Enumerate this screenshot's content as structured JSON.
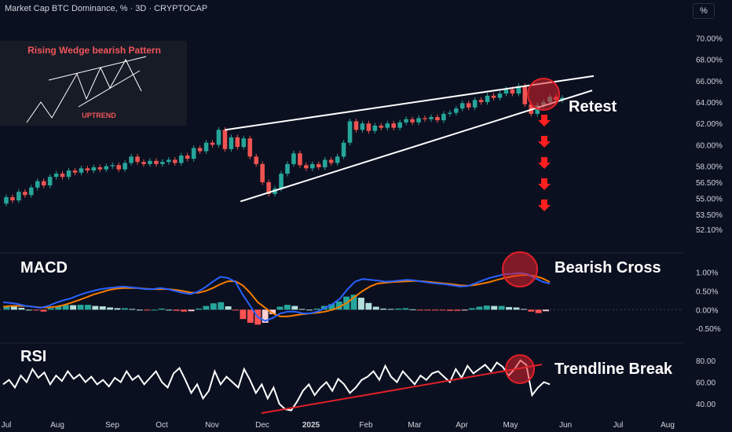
{
  "header": {
    "title": "Market Cap BTC Dominance, % · 3D · CRYPTOCAP",
    "unit": "%"
  },
  "inset": {
    "title": "Rising Wedge bearish Pattern",
    "subtitle": "UPTREND"
  },
  "annotations": {
    "retest": "Retest",
    "macd": "MACD",
    "bearish_cross": "Bearish Cross",
    "rsi": "RSI",
    "trendline_break": "Trendline Break"
  },
  "colors": {
    "background": "#0b1020",
    "up": "#26a69a",
    "down": "#ef5350",
    "macd": "#2962ff",
    "signal": "#f57c00",
    "highlight": "#e0202a"
  },
  "chart_data": [
    {
      "type": "candlestick",
      "title": "Market Cap BTC Dominance, % · 3D · CRYPTOCAP",
      "x_ticks": [
        "Jul",
        "Aug",
        "Sep",
        "Oct",
        "Nov",
        "Dec",
        "2025",
        "Feb",
        "Mar",
        "Apr",
        "May",
        "Jun",
        "Jul",
        "Aug"
      ],
      "y_ticks": [
        "52.10%",
        "53.50%",
        "55.00%",
        "56.50%",
        "58.00%",
        "60.00%",
        "62.00%",
        "64.00%",
        "66.00%",
        "68.00%",
        "70.00%"
      ],
      "ylim": [
        51.5,
        71.5
      ],
      "candles": [
        [
          54.5,
          55.1
        ],
        [
          55.1,
          54.8
        ],
        [
          54.8,
          55.6
        ],
        [
          55.6,
          55.3
        ],
        [
          55.3,
          56.0
        ],
        [
          56.0,
          56.6
        ],
        [
          56.6,
          56.2
        ],
        [
          56.2,
          57.0
        ],
        [
          57.0,
          57.3
        ],
        [
          57.3,
          57.0
        ],
        [
          57.0,
          57.6
        ],
        [
          57.6,
          57.4
        ],
        [
          57.4,
          57.8
        ],
        [
          57.8,
          57.6
        ],
        [
          57.6,
          57.9
        ],
        [
          57.9,
          57.7
        ],
        [
          57.7,
          58.0
        ],
        [
          58.0,
          58.1
        ],
        [
          58.1,
          57.7
        ],
        [
          57.7,
          58.3
        ],
        [
          58.3,
          58.9
        ],
        [
          58.9,
          58.4
        ],
        [
          58.4,
          58.2
        ],
        [
          58.2,
          58.5
        ],
        [
          58.5,
          58.2
        ],
        [
          58.2,
          58.4
        ],
        [
          58.4,
          58.6
        ],
        [
          58.6,
          58.3
        ],
        [
          58.3,
          59.0
        ],
        [
          59.0,
          58.7
        ],
        [
          58.7,
          59.7
        ],
        [
          59.7,
          59.4
        ],
        [
          59.4,
          60.2
        ],
        [
          60.2,
          60.0
        ],
        [
          60.0,
          61.4
        ],
        [
          61.4,
          59.6
        ],
        [
          59.6,
          60.7
        ],
        [
          60.7,
          59.8
        ],
        [
          59.8,
          60.6
        ],
        [
          60.6,
          58.9
        ],
        [
          58.9,
          58.2
        ],
        [
          58.2,
          56.5
        ],
        [
          56.5,
          55.4
        ],
        [
          55.4,
          55.9
        ],
        [
          55.9,
          57.3
        ],
        [
          57.3,
          58.2
        ],
        [
          58.2,
          59.2
        ],
        [
          59.2,
          58.1
        ],
        [
          58.1,
          57.8
        ],
        [
          57.8,
          58.2
        ],
        [
          58.2,
          57.9
        ],
        [
          57.9,
          58.6
        ],
        [
          58.6,
          58.3
        ],
        [
          58.3,
          58.9
        ],
        [
          58.9,
          60.2
        ],
        [
          60.2,
          62.2
        ],
        [
          62.2,
          61.4
        ],
        [
          61.4,
          62.0
        ],
        [
          62.0,
          61.3
        ],
        [
          61.3,
          61.8
        ],
        [
          61.8,
          61.6
        ],
        [
          61.6,
          62.0
        ],
        [
          62.0,
          61.6
        ],
        [
          61.6,
          62.1
        ],
        [
          62.1,
          62.4
        ],
        [
          62.4,
          62.1
        ],
        [
          62.1,
          62.5
        ],
        [
          62.5,
          62.4
        ],
        [
          62.4,
          62.6
        ],
        [
          62.6,
          62.3
        ],
        [
          62.3,
          62.9
        ],
        [
          62.9,
          63.0
        ],
        [
          63.0,
          63.4
        ],
        [
          63.4,
          63.9
        ],
        [
          63.9,
          63.5
        ],
        [
          63.5,
          64.2
        ],
        [
          64.2,
          64.0
        ],
        [
          64.0,
          64.6
        ],
        [
          64.6,
          64.4
        ],
        [
          64.4,
          64.8
        ],
        [
          64.8,
          65.2
        ],
        [
          65.2,
          64.8
        ],
        [
          64.8,
          65.5
        ],
        [
          65.5,
          63.8
        ],
        [
          63.8,
          62.9
        ],
        [
          62.9,
          63.7
        ],
        [
          63.7,
          64.0
        ],
        [
          64.0,
          64.5
        ],
        [
          64.5,
          64.2
        ],
        [
          64.2,
          64.4
        ]
      ],
      "trendlines": {
        "wedge_upper": [
          [
            35,
            61.4
          ],
          [
            89,
            66.0
          ]
        ],
        "wedge_lower": [
          [
            40,
            54.7
          ],
          [
            89,
            64.8
          ]
        ]
      },
      "markers": {
        "retest_circle_index": 86,
        "down_arrows": 5
      }
    },
    {
      "type": "line",
      "title": "MACD",
      "y_ticks": [
        "1.00%",
        "0.50%",
        "0.00%",
        "-0.50%"
      ],
      "ylim": [
        -0.75,
        1.35
      ],
      "series": [
        {
          "name": "MACD",
          "values": [
            0.2,
            0.18,
            0.15,
            0.1,
            0.08,
            0.05,
            0.1,
            0.18,
            0.25,
            0.3,
            0.38,
            0.45,
            0.5,
            0.55,
            0.58,
            0.6,
            0.62,
            0.6,
            0.58,
            0.55,
            0.55,
            0.58,
            0.55,
            0.5,
            0.45,
            0.42,
            0.48,
            0.6,
            0.75,
            0.88,
            0.85,
            0.75,
            0.4,
            0.1,
            -0.2,
            -0.3,
            -0.22,
            -0.1,
            -0.05,
            -0.05,
            -0.1,
            -0.1,
            -0.05,
            0.05,
            0.15,
            0.3,
            0.55,
            0.75,
            0.82,
            0.8,
            0.78,
            0.75,
            0.76,
            0.78,
            0.8,
            0.78,
            0.75,
            0.72,
            0.7,
            0.68,
            0.65,
            0.62,
            0.63,
            0.7,
            0.78,
            0.85,
            0.9,
            0.95,
            0.96,
            0.98,
            0.95,
            0.85,
            0.75,
            0.7
          ]
        },
        {
          "name": "Signal",
          "values": [
            0.08,
            0.1,
            0.1,
            0.1,
            0.08,
            0.06,
            0.06,
            0.08,
            0.12,
            0.18,
            0.25,
            0.32,
            0.4,
            0.46,
            0.52,
            0.56,
            0.58,
            0.58,
            0.58,
            0.56,
            0.55,
            0.55,
            0.55,
            0.53,
            0.5,
            0.46,
            0.45,
            0.5,
            0.58,
            0.68,
            0.76,
            0.76,
            0.65,
            0.45,
            0.2,
            0.05,
            -0.1,
            -0.18,
            -0.18,
            -0.15,
            -0.12,
            -0.1,
            -0.08,
            -0.05,
            0.0,
            0.08,
            0.2,
            0.35,
            0.5,
            0.62,
            0.7,
            0.72,
            0.74,
            0.75,
            0.76,
            0.77,
            0.76,
            0.74,
            0.72,
            0.7,
            0.68,
            0.65,
            0.64,
            0.66,
            0.7,
            0.74,
            0.8,
            0.85,
            0.89,
            0.92,
            0.93,
            0.9,
            0.84,
            0.74
          ]
        }
      ],
      "histogram": [
        0.1,
        0.08,
        0.05,
        0.0,
        -0.02,
        -0.05,
        0.04,
        0.1,
        0.13,
        0.12,
        0.13,
        0.13,
        0.1,
        0.09,
        0.06,
        0.04,
        0.04,
        0.02,
        0.0,
        -0.01,
        0.0,
        0.03,
        0.0,
        -0.03,
        -0.05,
        -0.04,
        0.03,
        0.1,
        0.17,
        0.2,
        0.09,
        -0.01,
        -0.25,
        -0.35,
        -0.4,
        -0.35,
        -0.12,
        0.08,
        0.13,
        0.1,
        0.02,
        0.0,
        0.03,
        0.1,
        0.15,
        0.22,
        0.35,
        0.4,
        0.32,
        0.18,
        0.08,
        0.03,
        0.02,
        0.03,
        0.04,
        0.01,
        -0.01,
        -0.02,
        -0.02,
        -0.02,
        -0.03,
        -0.03,
        -0.01,
        0.04,
        0.08,
        0.11,
        0.1,
        0.1,
        0.07,
        0.06,
        0.02,
        -0.05,
        -0.09,
        -0.04
      ]
    },
    {
      "type": "line",
      "title": "RSI",
      "y_ticks": [
        "80.00",
        "60.00",
        "40.00"
      ],
      "ylim": [
        30,
        90
      ],
      "series": [
        {
          "name": "RSI",
          "values": [
            58,
            62,
            55,
            66,
            60,
            72,
            64,
            69,
            58,
            66,
            61,
            70,
            63,
            67,
            60,
            65,
            58,
            62,
            56,
            64,
            60,
            70,
            62,
            66,
            58,
            64,
            70,
            60,
            55,
            68,
            73,
            62,
            50,
            58,
            45,
            52,
            70,
            58,
            65,
            60,
            55,
            72,
            62,
            50,
            58,
            45,
            55,
            40,
            35,
            34,
            42,
            52,
            58,
            48,
            55,
            60,
            52,
            63,
            58,
            50,
            55,
            62,
            65,
            70,
            62,
            75,
            65,
            60,
            70,
            64,
            58,
            66,
            62,
            68,
            70,
            65,
            60,
            72,
            64,
            75,
            68,
            72,
            76,
            70,
            78,
            74,
            66,
            72,
            80,
            76,
            48,
            55,
            60,
            58
          ]
        }
      ]
    }
  ]
}
